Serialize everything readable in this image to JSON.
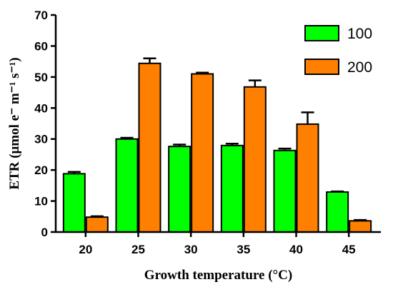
{
  "chart_data": {
    "type": "bar",
    "categories": [
      "20",
      "25",
      "30",
      "35",
      "40",
      "45"
    ],
    "series": [
      {
        "name": "100",
        "color": "#00ff00",
        "values": [
          18.8,
          30.0,
          27.6,
          27.9,
          26.3,
          12.9
        ],
        "errors": [
          0.6,
          0.4,
          0.6,
          0.6,
          0.6,
          0.2
        ]
      },
      {
        "name": "200",
        "color": "#ff8000",
        "values": [
          4.8,
          54.4,
          51.0,
          46.8,
          34.8,
          3.6
        ],
        "errors": [
          0.3,
          1.6,
          0.4,
          2.1,
          3.8,
          0.3
        ]
      }
    ],
    "xlabel": "Growth temperature (°C)",
    "ylabel": "ETR (μmol e⁻ m⁻¹ s⁻¹)",
    "ylim": [
      0,
      70
    ],
    "yticks": [
      0,
      10,
      20,
      30,
      40,
      50,
      60,
      70
    ],
    "grid": false,
    "legend": "top-right",
    "error_bars": true
  }
}
